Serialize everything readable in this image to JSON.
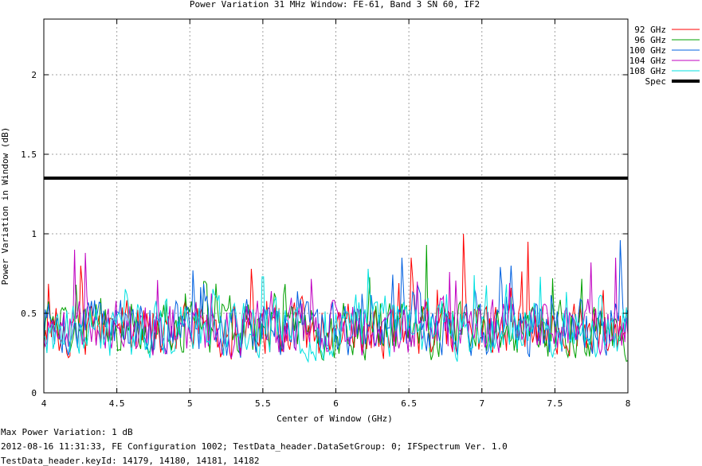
{
  "chart_data": {
    "type": "line",
    "title": "Power Variation 31 MHz Window: FE-61, Band 3 SN 60, IF2",
    "xlabel": "Center of Window (GHz)",
    "ylabel": "Power Variation in Window (dB)",
    "xlim": [
      4,
      8
    ],
    "ylim": [
      0,
      2.35
    ],
    "xticks": [
      4,
      4.5,
      5,
      5.5,
      6,
      6.5,
      7,
      7.5,
      8
    ],
    "xtick_labels": [
      "4",
      "4.5",
      "5",
      "5.5",
      "6",
      "6.5",
      "7",
      "7.5",
      "8"
    ],
    "yticks": [
      0,
      0.5,
      1,
      1.5,
      2
    ],
    "ytick_labels": [
      "0",
      "0.5",
      "1",
      "1.5",
      "2"
    ],
    "grid": true,
    "legend_position": "top-right-outside",
    "spec": {
      "name": "Spec",
      "value": 1.35,
      "color": "#000000"
    },
    "series": [
      {
        "name": "92 GHz",
        "color": "#ff0000",
        "mean": 0.4,
        "peaks": [
          [
            4.25,
            0.8
          ],
          [
            5.42,
            0.78
          ],
          [
            6.52,
            0.85
          ],
          [
            6.87,
            1.0
          ],
          [
            7.32,
            0.95
          ]
        ]
      },
      {
        "name": "96 GHz",
        "color": "#00a000",
        "mean": 0.4,
        "peaks": [
          [
            4.22,
            0.68
          ],
          [
            5.1,
            0.7
          ],
          [
            6.62,
            0.93
          ],
          [
            7.48,
            0.72
          ]
        ]
      },
      {
        "name": "100 GHz",
        "color": "#0060e0",
        "mean": 0.41,
        "peaks": [
          [
            5.02,
            0.77
          ],
          [
            6.45,
            0.85
          ],
          [
            7.2,
            0.8
          ],
          [
            7.95,
            0.96
          ]
        ]
      },
      {
        "name": "104 GHz",
        "color": "#c000c0",
        "mean": 0.41,
        "peaks": [
          [
            4.21,
            0.9
          ],
          [
            4.28,
            0.88
          ],
          [
            6.78,
            0.76
          ],
          [
            7.75,
            0.82
          ],
          [
            7.92,
            0.85
          ]
        ]
      },
      {
        "name": "108 GHz",
        "color": "#00e0e0",
        "mean": 0.4,
        "peaks": [
          [
            5.5,
            0.73
          ],
          [
            6.22,
            0.78
          ],
          [
            6.95,
            0.74
          ],
          [
            7.4,
            0.73
          ]
        ]
      }
    ]
  },
  "footer": {
    "line1": "Max Power Variation: 1 dB",
    "line2": "2012-08-16 11:31:33, FE Configuration 1002; TestData_header.DataSetGroup: 0; IFSpectrum Ver. 1.0",
    "line3": "TestData_header.keyId: 14179, 14180, 14181, 14182"
  }
}
